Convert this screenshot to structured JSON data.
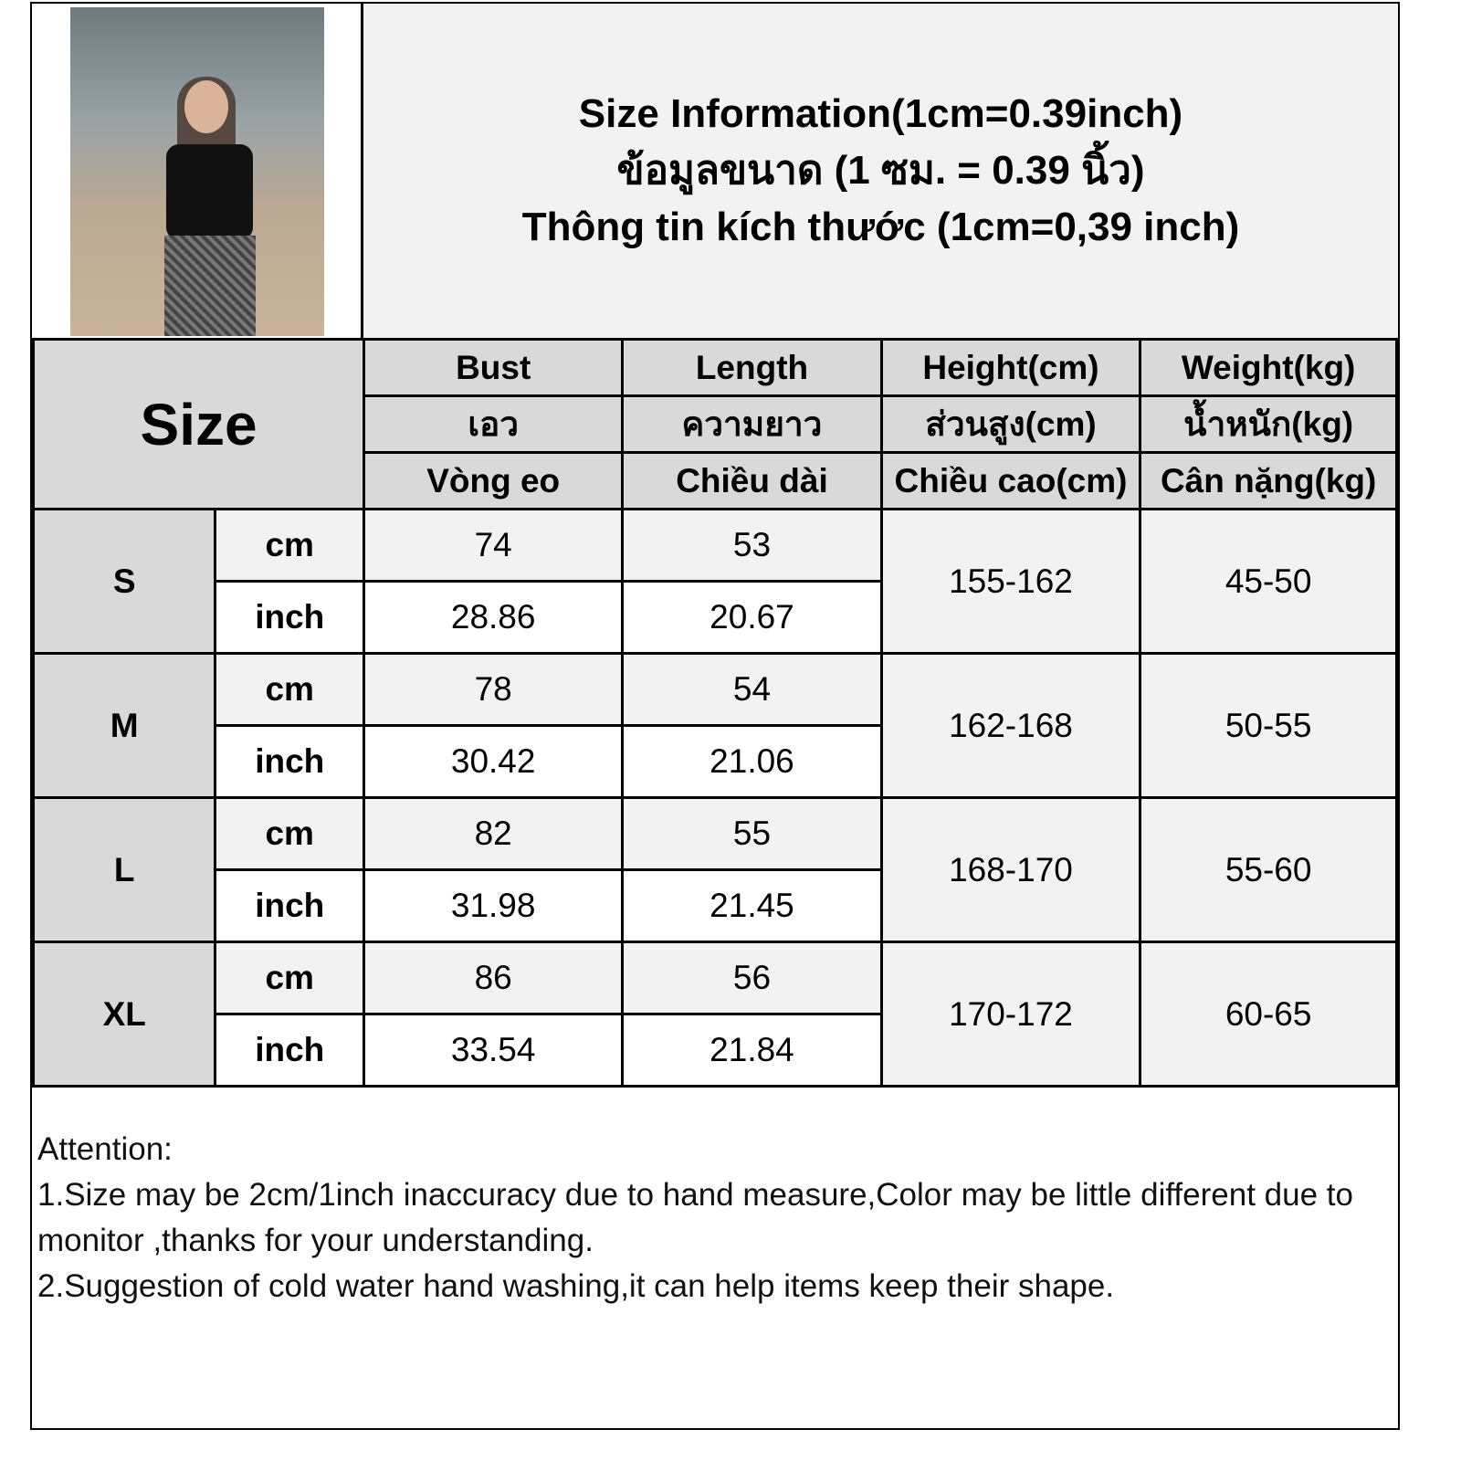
{
  "title_lines": [
    "Size Information(1cm=0.39inch)",
    "ข้อมูลขนาด (1 ซม. = 0.39 นิ้ว)",
    "Thông tin kích thước (1cm=0,39 inch)"
  ],
  "table": {
    "size_header": "Size",
    "columns": [
      {
        "en": "Bust",
        "th": "เอว",
        "vi": "Vòng eo"
      },
      {
        "en": "Length",
        "th": "ความยาว",
        "vi": "Chiều dài"
      },
      {
        "en": "Height(cm)",
        "th": "ส่วนสูง(cm)",
        "vi": "Chiều cao(cm)"
      },
      {
        "en": "Weight(kg)",
        "th": "น้ำหนัก(kg)",
        "vi": "Cân nặng(kg)"
      }
    ],
    "unit_cm": "cm",
    "unit_inch": "inch",
    "rows": [
      {
        "size": "S",
        "bust_cm": "74",
        "length_cm": "53",
        "bust_inch": "28.86",
        "length_inch": "20.67",
        "height": "155-162",
        "weight": "45-50"
      },
      {
        "size": "M",
        "bust_cm": "78",
        "length_cm": "54",
        "bust_inch": "30.42",
        "length_inch": "21.06",
        "height": "162-168",
        "weight": "50-55"
      },
      {
        "size": "L",
        "bust_cm": "82",
        "length_cm": "55",
        "bust_inch": "31.98",
        "length_inch": "21.45",
        "height": "168-170",
        "weight": "55-60"
      },
      {
        "size": "XL",
        "bust_cm": "86",
        "length_cm": "56",
        "bust_inch": "33.54",
        "length_inch": "21.84",
        "height": "170-172",
        "weight": "60-65"
      }
    ]
  },
  "notes": {
    "heading": "Attention:",
    "items": [
      "1.Size may be 2cm/1inch inaccuracy due to hand measure,Color may be little different due to monitor ,thanks for your understanding.",
      "2.Suggestion of cold water hand washing,it can help items keep their shape."
    ]
  },
  "colors": {
    "header_gray": "#d9d9d9",
    "light_gray": "#f2f2f2",
    "border": "#000000"
  }
}
